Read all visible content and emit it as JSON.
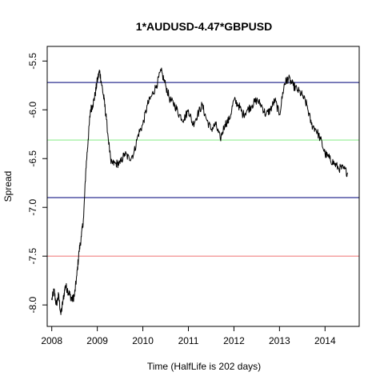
{
  "chart_data": {
    "type": "line",
    "title": "1*AUDUSD-4.47*GBPUSD",
    "xlabel": "Time  (HalfLife is 202 days)",
    "ylabel": "Spread",
    "xlim": [
      2007.9,
      2014.75
    ],
    "ylim": [
      -8.22,
      -5.35
    ],
    "xticks": [
      2008,
      2009,
      2010,
      2011,
      2012,
      2013,
      2014
    ],
    "xtick_labels": [
      "2008",
      "2009",
      "2010",
      "2011",
      "2012",
      "2013",
      "2014"
    ],
    "yticks": [
      -8.0,
      -7.5,
      -7.0,
      -6.5,
      -6.0,
      -5.5
    ],
    "ytick_labels": [
      "-8.0",
      "-7.5",
      "-7.0",
      "-6.5",
      "-6.0",
      "-5.5"
    ],
    "hlines": [
      {
        "y": -5.72,
        "color": "#2e3192"
      },
      {
        "y": -6.31,
        "color": "#90ee90"
      },
      {
        "y": -6.9,
        "color": "#2e3192"
      },
      {
        "y": -7.5,
        "color": "#f08080"
      }
    ],
    "series": [
      {
        "color": "#000000",
        "x": [
          2008.0,
          2008.05,
          2008.1,
          2008.15,
          2008.2,
          2008.25,
          2008.3,
          2008.35,
          2008.4,
          2008.45,
          2008.5,
          2008.55,
          2008.6,
          2008.65,
          2008.7,
          2008.75,
          2008.8,
          2008.85,
          2008.9,
          2008.95,
          2009.0,
          2009.05,
          2009.1,
          2009.15,
          2009.2,
          2009.3,
          2009.4,
          2009.5,
          2009.6,
          2009.7,
          2009.8,
          2009.9,
          2010.0,
          2010.1,
          2010.2,
          2010.3,
          2010.4,
          2010.5,
          2010.6,
          2010.7,
          2010.8,
          2010.9,
          2011.0,
          2011.1,
          2011.2,
          2011.3,
          2011.4,
          2011.5,
          2011.6,
          2011.7,
          2011.8,
          2011.9,
          2012.0,
          2012.1,
          2012.2,
          2012.3,
          2012.4,
          2012.5,
          2012.6,
          2012.7,
          2012.8,
          2012.9,
          2013.0,
          2013.1,
          2013.15,
          2013.2,
          2013.3,
          2013.4,
          2013.5,
          2013.6,
          2013.7,
          2013.8,
          2013.9,
          2014.0,
          2014.1,
          2014.2,
          2014.3,
          2014.4,
          2014.5
        ],
        "values": [
          -7.95,
          -7.85,
          -8.0,
          -7.9,
          -8.1,
          -7.95,
          -7.8,
          -7.85,
          -7.9,
          -7.95,
          -7.9,
          -7.7,
          -7.45,
          -7.3,
          -7.1,
          -6.6,
          -6.3,
          -6.0,
          -5.95,
          -5.85,
          -5.7,
          -5.6,
          -5.75,
          -5.9,
          -6.1,
          -6.55,
          -6.55,
          -6.55,
          -6.45,
          -6.5,
          -6.45,
          -6.25,
          -6.15,
          -5.95,
          -5.85,
          -5.75,
          -5.6,
          -5.75,
          -5.9,
          -5.95,
          -6.05,
          -6.1,
          -6.0,
          -6.15,
          -6.05,
          -5.95,
          -6.1,
          -6.2,
          -6.15,
          -6.3,
          -6.15,
          -6.1,
          -5.9,
          -5.95,
          -6.05,
          -6.0,
          -5.95,
          -5.9,
          -5.95,
          -6.05,
          -6.0,
          -5.9,
          -6.05,
          -5.75,
          -5.7,
          -5.68,
          -5.75,
          -5.8,
          -5.85,
          -5.95,
          -6.15,
          -6.2,
          -6.3,
          -6.45,
          -6.5,
          -6.55,
          -6.6,
          -6.6,
          -6.65
        ]
      }
    ]
  }
}
